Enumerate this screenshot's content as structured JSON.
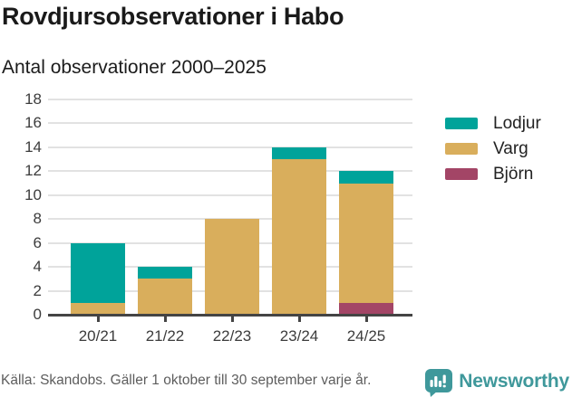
{
  "header": {
    "title": "Rovdjursobservationer i Habo",
    "subtitle": "Antal observationer 2000–2025"
  },
  "chart_data": {
    "type": "bar",
    "stacked": true,
    "title": "Rovdjursobservationer i Habo",
    "subtitle": "Antal observationer 2000–2025",
    "categories": [
      "20/21",
      "21/22",
      "22/23",
      "23/24",
      "24/25"
    ],
    "series": [
      {
        "name": "Lodjur",
        "color": "#00A39A",
        "values": [
          5,
          1,
          0,
          1,
          1
        ]
      },
      {
        "name": "Varg",
        "color": "#D9AE5C",
        "values": [
          1,
          3,
          8,
          13,
          10
        ]
      },
      {
        "name": "Björn",
        "color": "#A34566",
        "values": [
          0,
          0,
          0,
          0,
          1
        ]
      }
    ],
    "stack_order_bottom_to_top": [
      "Björn",
      "Varg",
      "Lodjur"
    ],
    "stack_totals": [
      6,
      4,
      8,
      14,
      12
    ],
    "xlabel": "",
    "ylabel": "",
    "ylim": [
      0,
      18
    ],
    "ytick_step": 2,
    "grid": true,
    "legend_position": "right",
    "axis_color": "#444444",
    "grid_color": "#e2e2e2",
    "tick_label_color": "#3c3c3c"
  },
  "footer": {
    "source": "Källa: Skandobs. Gäller 1 oktober till 30 september varje år.",
    "brand": "Newsworthy",
    "brand_color": "#3F989B"
  }
}
